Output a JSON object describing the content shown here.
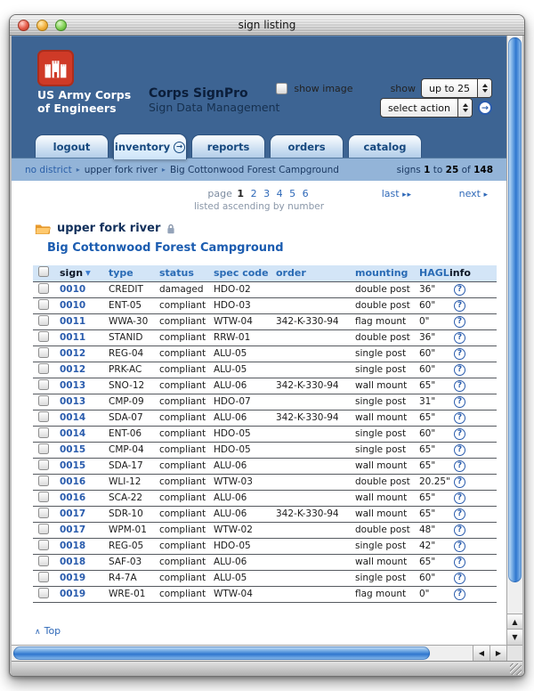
{
  "window": {
    "title": "sign listing"
  },
  "header": {
    "org_line1": "US Army Corps",
    "org_line2": "of Engineers",
    "app_name": "Corps SignPro",
    "app_subtitle": "Sign Data Management"
  },
  "tabs": [
    {
      "label": "logout",
      "active": false
    },
    {
      "label": "inventory",
      "active": true
    },
    {
      "label": "reports",
      "active": false
    },
    {
      "label": "orders",
      "active": false
    },
    {
      "label": "catalog",
      "active": false
    }
  ],
  "breadcrumb": {
    "items": [
      "no district",
      "upper fork river",
      "Big Cottonwood Forest Campground"
    ],
    "separator": "▸"
  },
  "signs_summary": {
    "label": "signs",
    "from": "1",
    "to_word": "to",
    "to": "25",
    "of_word": "of",
    "total": "148"
  },
  "pagination": {
    "page_label": "page",
    "current": "1",
    "pages": [
      "2",
      "3",
      "4",
      "5",
      "6"
    ],
    "order_note": "listed ascending by number",
    "last_label": "last",
    "last_arrows": "▸ ▸",
    "next_label": "next",
    "next_arrow": "▸"
  },
  "location": {
    "district": "upper fork river",
    "site": "Big Cottonwood Forest Campground"
  },
  "controls": {
    "show_image_label": "show image",
    "show_label": "show",
    "page_size_value": "up to 25",
    "action_value": "select action"
  },
  "table": {
    "headers": [
      "sign",
      "type",
      "status",
      "spec code",
      "order",
      "mounting",
      "HAGL",
      "info"
    ],
    "sort_column": "sign",
    "rows": [
      [
        "0010",
        "CREDIT",
        "damaged",
        "HDO-02",
        "",
        "double post",
        "36\""
      ],
      [
        "0010",
        "ENT-05",
        "compliant",
        "HDO-03",
        "",
        "double post",
        "60\""
      ],
      [
        "0011",
        "WWA-30",
        "compliant",
        "WTW-04",
        "342-K-330-94",
        "flag mount",
        "0\""
      ],
      [
        "0011",
        "STANID",
        "compliant",
        "RRW-01",
        "",
        "double post",
        "36\""
      ],
      [
        "0012",
        "REG-04",
        "compliant",
        "ALU-05",
        "",
        "single post",
        "60\""
      ],
      [
        "0012",
        "PRK-AC",
        "compliant",
        "ALU-05",
        "",
        "single post",
        "60\""
      ],
      [
        "0013",
        "SNO-12",
        "compliant",
        "ALU-06",
        "342-K-330-94",
        "wall mount",
        "65\""
      ],
      [
        "0013",
        "CMP-09",
        "compliant",
        "HDO-07",
        "",
        "single post",
        "31\""
      ],
      [
        "0014",
        "SDA-07",
        "compliant",
        "ALU-06",
        "342-K-330-94",
        "wall mount",
        "65\""
      ],
      [
        "0014",
        "ENT-06",
        "compliant",
        "HDO-05",
        "",
        "single post",
        "60\""
      ],
      [
        "0015",
        "CMP-04",
        "compliant",
        "HDO-05",
        "",
        "single post",
        "65\""
      ],
      [
        "0015",
        "SDA-17",
        "compliant",
        "ALU-06",
        "",
        "wall mount",
        "65\""
      ],
      [
        "0016",
        "WLI-12",
        "compliant",
        "WTW-03",
        "",
        "double post",
        "20.25\""
      ],
      [
        "0016",
        "SCA-22",
        "compliant",
        "ALU-06",
        "",
        "wall mount",
        "65\""
      ],
      [
        "0017",
        "SDR-10",
        "compliant",
        "ALU-06",
        "342-K-330-94",
        "wall mount",
        "65\""
      ],
      [
        "0017",
        "WPM-01",
        "compliant",
        "WTW-02",
        "",
        "double post",
        "48\""
      ],
      [
        "0018",
        "REG-05",
        "compliant",
        "HDO-05",
        "",
        "single post",
        "42\""
      ],
      [
        "0018",
        "SAF-03",
        "compliant",
        "ALU-06",
        "",
        "wall mount",
        "65\""
      ],
      [
        "0019",
        "R4-7A",
        "compliant",
        "ALU-05",
        "",
        "single post",
        "60\""
      ],
      [
        "0019",
        "WRE-01",
        "compliant",
        "WTW-04",
        "",
        "flag mount",
        "0\""
      ]
    ]
  },
  "footer": {
    "top_label": "Top",
    "top_caret": "∧"
  },
  "icons": {
    "sort_desc": "▼",
    "help": "?",
    "go_arrow": "→",
    "up_arrow": "▲",
    "down_arrow": "▼",
    "left_arrow": "◀",
    "right_arrow": "▶"
  },
  "colors": {
    "header_blue": "#3d6493",
    "breadcrumb_blue": "#93b4d8",
    "table_header_bg": "#d3e5f7",
    "link_blue": "#2e68b8",
    "sign_link_blue": "#2a5cad",
    "brand_red": "#cf3a27",
    "aqua_scrollbar": "#2f77cf"
  }
}
